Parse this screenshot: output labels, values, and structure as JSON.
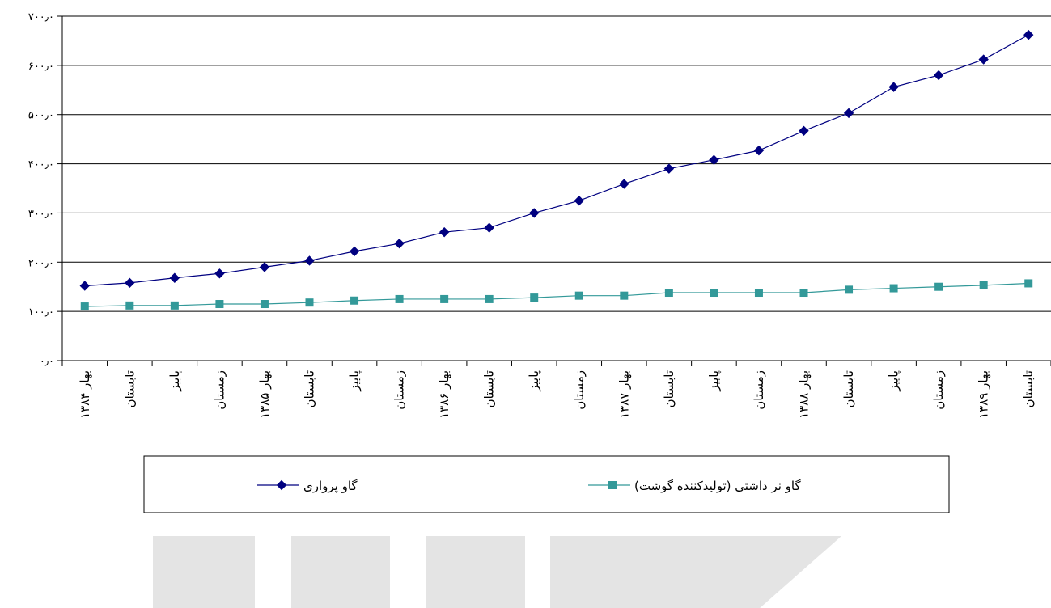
{
  "chart_data": {
    "type": "line",
    "categories": [
      "بهار ۱۳۸۴",
      "تابستان",
      "پاییز",
      "زمستان",
      "بهار ۱۳۸۵",
      "تابستان",
      "پاییز",
      "زمستان",
      "بهار ۱۳۸۶",
      "تابستان",
      "پاییز",
      "زمستان",
      "بهار ۱۳۸۷",
      "تابستان",
      "پاییز",
      "زمستان",
      "بهار ۱۳۸۸",
      "تابستان",
      "پاییز",
      "زمستان",
      "بهار ۱۳۸۹",
      "تابستان"
    ],
    "series": [
      {
        "name": "گاو پرواری",
        "color": "#000080",
        "marker": "diamond",
        "values": [
          152,
          158,
          168,
          177,
          190,
          203,
          222,
          238,
          261,
          270,
          300,
          325,
          359,
          390,
          408,
          427,
          467,
          503,
          556,
          580,
          612,
          662
        ]
      },
      {
        "name": "گاو نر داشتی (تولیدکننده گوشت)",
        "color": "#339999",
        "marker": "square",
        "values": [
          110,
          112,
          112,
          115,
          115,
          118,
          122,
          125,
          125,
          125,
          128,
          132,
          132,
          138,
          138,
          138,
          138,
          144,
          147,
          150,
          153,
          157
        ]
      }
    ],
    "ylim": [
      0,
      700
    ],
    "yticks": [
      "۰٫۰",
      "۱۰۰٫۰",
      "۲۰۰٫۰",
      "۳۰۰٫۰",
      "۴۰۰٫۰",
      "۵۰۰٫۰",
      "۶۰۰٫۰",
      "۷۰۰٫۰"
    ],
    "grid": true,
    "legend_position": "bottom"
  }
}
